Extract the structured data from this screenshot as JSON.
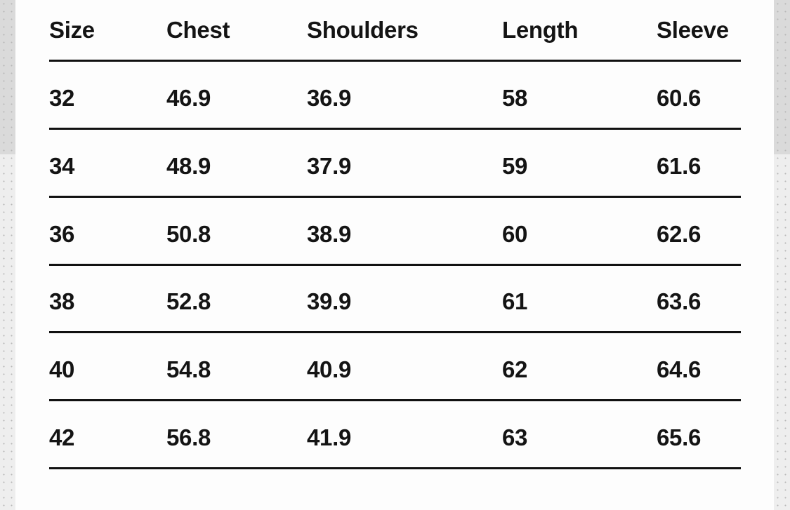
{
  "table": {
    "headers": [
      "Size",
      "Chest",
      "Shoulders",
      "Length",
      "Sleeve"
    ],
    "rows": [
      [
        "32",
        "46.9",
        "36.9",
        "58",
        "60.6"
      ],
      [
        "34",
        "48.9",
        "37.9",
        "59",
        "61.6"
      ],
      [
        "36",
        "50.8",
        "38.9",
        "60",
        "62.6"
      ],
      [
        "38",
        "52.8",
        "39.9",
        "61",
        "63.6"
      ],
      [
        "40",
        "54.8",
        "40.9",
        "62",
        "64.6"
      ],
      [
        "42",
        "56.8",
        "41.9",
        "63",
        "65.6"
      ]
    ]
  }
}
